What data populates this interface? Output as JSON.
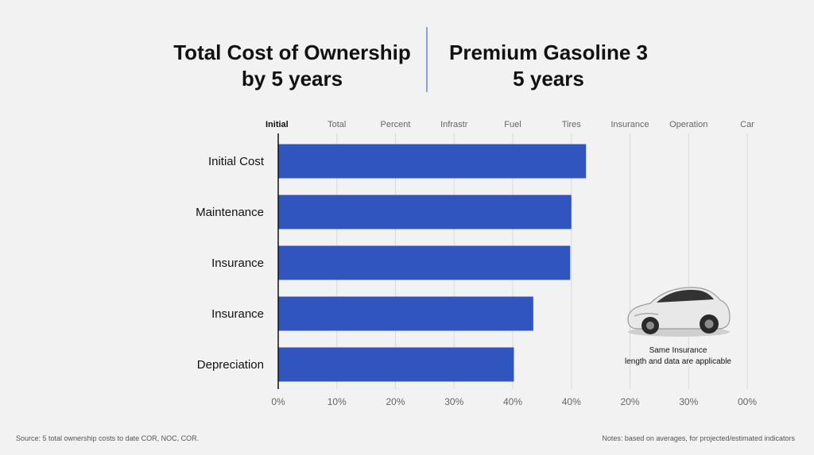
{
  "chart_data": {
    "type": "bar",
    "orientation": "horizontal",
    "title": "Total Cost of Ownership by 5 years",
    "subtitle": "Premium Gasoline 3 5 years",
    "column_headers": [
      "Initial",
      "Total",
      "Percent",
      "Infrastr",
      "Fuel",
      "Tires",
      "Insurance",
      "Operation",
      "Car"
    ],
    "categories": [
      "Initial Cost",
      "Maintenance",
      "Insurance",
      "Insurance",
      "Depreciation"
    ],
    "values": [
      52.5,
      50.0,
      49.8,
      43.5,
      40.2
    ],
    "x_tick_labels": [
      "0%",
      "10%",
      "20%",
      "30%",
      "40%",
      "40%",
      "20%",
      "30%",
      "00%"
    ],
    "xlim": [
      0,
      80
    ],
    "bar_color": "#3055be",
    "grid": true
  },
  "page": {
    "title_left_line1": "Total Cost of Ownership",
    "title_left_line2": "by 5 years",
    "title_right_line1": "Premium Gasoline 3",
    "title_right_line2": "5 years",
    "car_caption_line1": "Same Insurance",
    "car_caption_line2": "length and data are applicable",
    "footer_left": "Source: 5 total ownership costs to date COR, NOC, COR.",
    "footer_right": "Notes: based on averages, for projected/estimated indicators"
  },
  "colors": {
    "background": "#f2f2f2",
    "bar": "#3055be",
    "divider": "#8da1d6",
    "grid": "#d9d9d9"
  }
}
